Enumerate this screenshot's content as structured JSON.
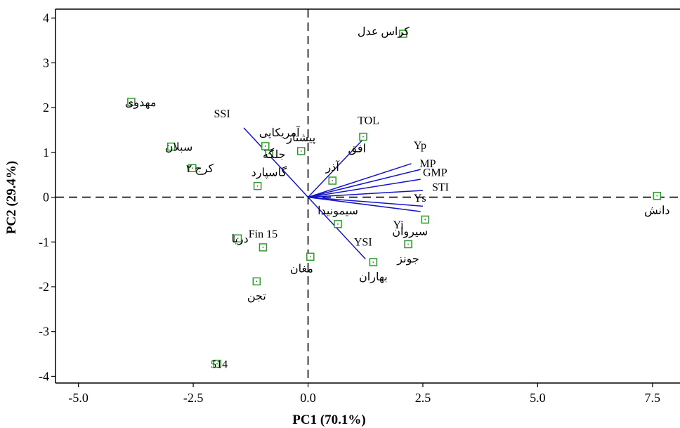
{
  "chart_data": {
    "type": "scatter",
    "title": "",
    "xlabel": "PC1 (70.1%)",
    "ylabel": "PC2 (29.4%)",
    "xlim": [
      -5.5,
      8.1
    ],
    "ylim": [
      -4.15,
      4.2
    ],
    "x_ticks": [
      -5.0,
      -2.5,
      0.0,
      2.5,
      5.0,
      7.5
    ],
    "x_tick_labels": [
      "-5.0",
      "-2.5",
      "0.0",
      "2.5",
      "5.0",
      "7.5"
    ],
    "y_ticks": [
      -4,
      -3,
      -2,
      -1,
      0,
      1,
      2,
      3,
      4
    ],
    "y_tick_labels": [
      "-4",
      "-3",
      "-2",
      "-1",
      "0",
      "1",
      "2",
      "3",
      "4"
    ],
    "reference_lines": {
      "x": 0,
      "y": 0,
      "style": "dashed"
    },
    "grid": false,
    "point_color": "#2e9b2e",
    "vector_color": "#1414c8",
    "points": [
      {
        "label": "کراس عدل",
        "x": 2.07,
        "y": 3.65,
        "anchor": "right"
      },
      {
        "label": "مهدوی",
        "x": -3.85,
        "y": 2.13,
        "anchor": "left"
      },
      {
        "label": "سبلان",
        "x": -2.98,
        "y": 1.13,
        "anchor": "left"
      },
      {
        "label": "کرج ۲",
        "x": -2.52,
        "y": 0.65,
        "anchor": "left"
      },
      {
        "label": "آمریکایی",
        "x": -0.93,
        "y": 1.14,
        "anchor": "left-above"
      },
      {
        "label": "جلگه",
        "x": -0.85,
        "y": 0.97,
        "anchor": "left"
      },
      {
        "label": "پیشتاز",
        "x": -0.15,
        "y": 1.03,
        "anchor": "above"
      },
      {
        "label": "گاسپارد",
        "x": -1.1,
        "y": 0.25,
        "anchor": "left-above"
      },
      {
        "label": "افق",
        "x": 1.2,
        "y": 1.35,
        "anchor": "below-right"
      },
      {
        "label": "آذر",
        "x": 0.53,
        "y": 0.37,
        "anchor": "above"
      },
      {
        "label": "دانش",
        "x": 7.6,
        "y": 0.03,
        "anchor": "below"
      },
      {
        "label": "سیمونیدا",
        "x": 0.65,
        "y": -0.6,
        "anchor": "above"
      },
      {
        "label": "سیروان",
        "x": 2.55,
        "y": -0.5,
        "anchor": "below-right"
      },
      {
        "label": "جونز",
        "x": 2.18,
        "y": -1.05,
        "anchor": "below"
      },
      {
        "label": "بهاران",
        "x": 1.42,
        "y": -1.45,
        "anchor": "below"
      },
      {
        "label": "مغان",
        "x": 0.05,
        "y": -1.33,
        "anchor": "below-right"
      },
      {
        "label": "دریا",
        "x": -1.53,
        "y": -0.92,
        "anchor": "left"
      },
      {
        "label": "Fin 15",
        "x": -0.98,
        "y": -1.12,
        "anchor": "above"
      },
      {
        "label": "تجن",
        "x": -1.12,
        "y": -1.88,
        "anchor": "below"
      },
      {
        "label": "514",
        "x": -1.98,
        "y": -3.72,
        "anchor": "left"
      }
    ],
    "vectors": [
      {
        "label": "SSI",
        "x": -1.4,
        "y": 1.55,
        "label_dx": -0.65,
        "label_dy": 0.23
      },
      {
        "label": "TOL",
        "x": 1.28,
        "y": 1.38,
        "label_dx": -0.2,
        "label_dy": 0.25
      },
      {
        "label": "Yp",
        "x": 2.25,
        "y": 0.75,
        "label_dx": 0.05,
        "label_dy": 0.33
      },
      {
        "label": "MP",
        "x": 2.45,
        "y": 0.62,
        "label_dx": -0.02,
        "label_dy": 0.05
      },
      {
        "label": "GMP",
        "x": 2.45,
        "y": 0.4,
        "label_dx": 0.05,
        "label_dy": 0.07
      },
      {
        "label": "STI",
        "x": 2.5,
        "y": 0.15,
        "label_dx": 0.2,
        "label_dy": -0.01
      },
      {
        "label": "Ys",
        "x": 2.5,
        "y": -0.2,
        "label_dx": -0.2,
        "label_dy": 0.1
      },
      {
        "label": "Yi",
        "x": 2.45,
        "y": -0.32,
        "label_dx": -0.6,
        "label_dy": -0.38
      },
      {
        "label": "YSI",
        "x": 1.25,
        "y": -1.38,
        "label_dx": -0.25,
        "label_dy": 0.3
      }
    ]
  }
}
